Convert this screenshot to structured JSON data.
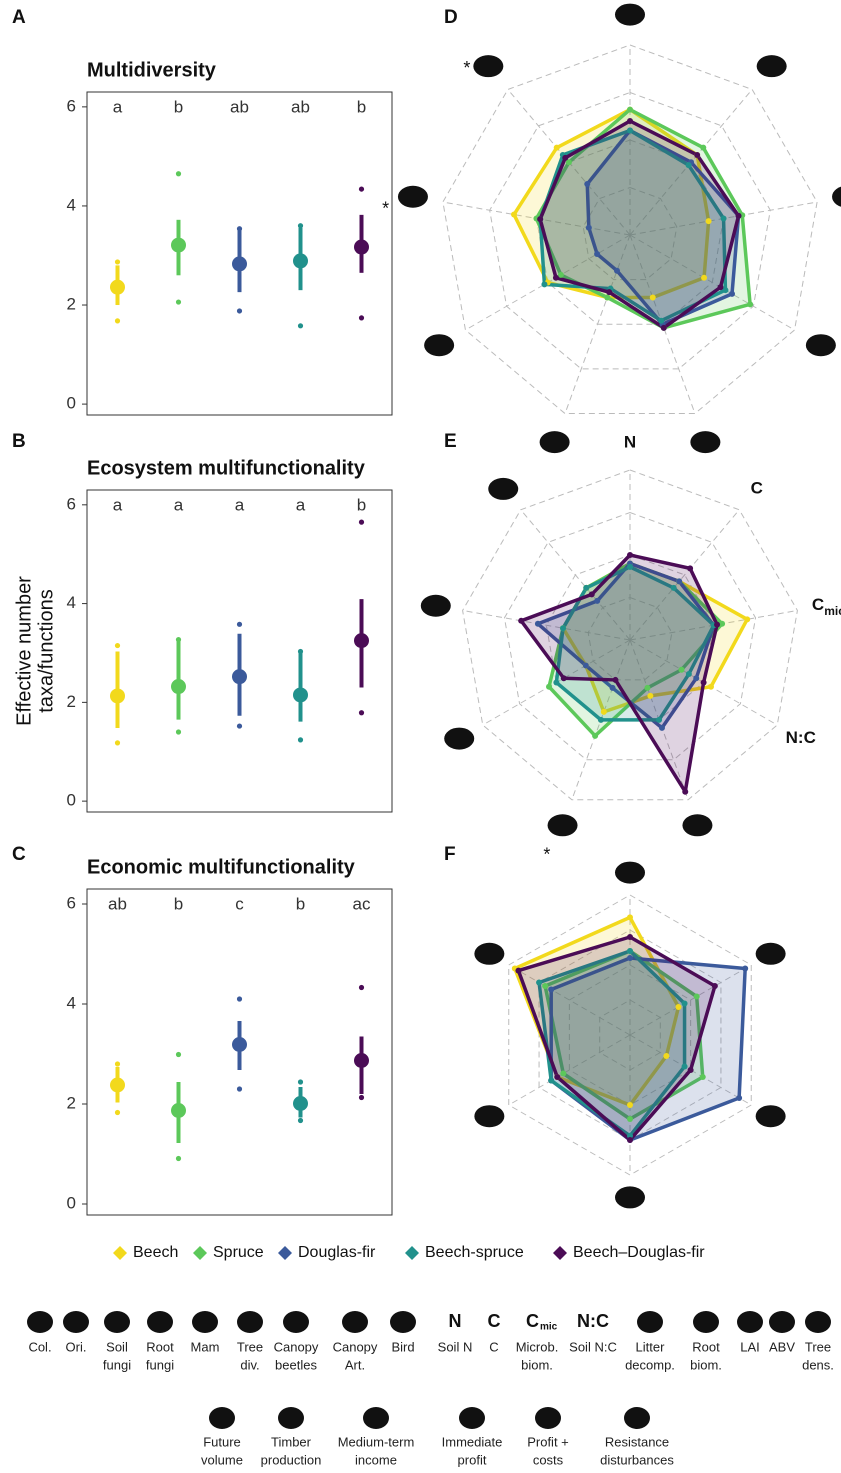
{
  "chart_data": [
    {
      "type": "dotplot",
      "panel": "A",
      "title": "Multidiversity",
      "ylim": [
        -0.22,
        6.3
      ],
      "yticks": [
        0,
        2,
        4,
        6
      ],
      "series": [
        {
          "name": "Beech",
          "color": "#f2d91c",
          "letter": "a",
          "mean": 2.36,
          "low": 2.0,
          "high": 2.8,
          "min": 1.68,
          "max": 2.87
        },
        {
          "name": "Spruce",
          "color": "#5cc85a",
          "letter": "b",
          "mean": 3.21,
          "low": 2.6,
          "high": 3.72,
          "min": 2.06,
          "max": 4.65
        },
        {
          "name": "Douglas-fir",
          "color": "#3b5a9b",
          "letter": "ab",
          "mean": 2.83,
          "low": 2.26,
          "high": 3.54,
          "min": 1.88,
          "max": 3.54
        },
        {
          "name": "Beech-spruce",
          "color": "#21918c",
          "letter": "ab",
          "mean": 2.89,
          "low": 2.3,
          "high": 3.56,
          "min": 1.58,
          "max": 3.6
        },
        {
          "name": "Beech–Douglas-fir",
          "color": "#4b0c56",
          "letter": "b",
          "mean": 3.17,
          "low": 2.65,
          "high": 3.82,
          "min": 1.74,
          "max": 4.34
        }
      ]
    },
    {
      "type": "dotplot",
      "panel": "B",
      "title": "Ecosystem multifunctionality",
      "ylabel": [
        "Effective number",
        "taxa/functions"
      ],
      "ylim": [
        -0.22,
        6.3
      ],
      "yticks": [
        0,
        2,
        4,
        6
      ],
      "series": [
        {
          "name": "Beech",
          "color": "#f2d91c",
          "letter": "a",
          "mean": 2.13,
          "low": 1.48,
          "high": 3.03,
          "min": 1.18,
          "max": 3.15
        },
        {
          "name": "Spruce",
          "color": "#5cc85a",
          "letter": "a",
          "mean": 2.32,
          "low": 1.65,
          "high": 3.27,
          "min": 1.4,
          "max": 3.27
        },
        {
          "name": "Douglas-fir",
          "color": "#3b5a9b",
          "letter": "a",
          "mean": 2.52,
          "low": 1.73,
          "high": 3.39,
          "min": 1.52,
          "max": 3.58
        },
        {
          "name": "Beech-spruce",
          "color": "#21918c",
          "letter": "a",
          "mean": 2.15,
          "low": 1.61,
          "high": 3.03,
          "min": 1.24,
          "max": 3.03
        },
        {
          "name": "Beech–Douglas-fir",
          "color": "#4b0c56",
          "letter": "b",
          "mean": 3.25,
          "low": 2.3,
          "high": 4.09,
          "min": 1.79,
          "max": 5.65
        }
      ]
    },
    {
      "type": "dotplot",
      "panel": "C",
      "title": "Economic multifunctionality",
      "ylim": [
        -0.22,
        6.3
      ],
      "yticks": [
        0,
        2,
        4,
        6
      ],
      "series": [
        {
          "name": "Beech",
          "color": "#f2d91c",
          "letter": "ab",
          "mean": 2.38,
          "low": 2.03,
          "high": 2.74,
          "min": 1.83,
          "max": 2.8
        },
        {
          "name": "Spruce",
          "color": "#5cc85a",
          "letter": "b",
          "mean": 1.87,
          "low": 1.22,
          "high": 2.44,
          "min": 0.91,
          "max": 2.99
        },
        {
          "name": "Douglas-fir",
          "color": "#3b5a9b",
          "letter": "c",
          "mean": 3.19,
          "low": 2.68,
          "high": 3.66,
          "min": 2.3,
          "max": 4.1
        },
        {
          "name": "Beech-spruce",
          "color": "#21918c",
          "letter": "b",
          "mean": 2.01,
          "low": 1.73,
          "high": 2.34,
          "min": 1.67,
          "max": 2.44
        },
        {
          "name": "Beech–Douglas-fir",
          "color": "#4b0c56",
          "letter": "ac",
          "mean": 2.87,
          "low": 2.2,
          "high": 3.35,
          "min": 2.13,
          "max": 4.33
        }
      ]
    },
    {
      "type": "radar",
      "panel": "D",
      "rlim": [
        0,
        1
      ],
      "rticks": [
        0.25,
        0.5,
        0.75,
        1
      ],
      "annotations": [
        {
          "axis": 8,
          "text": "*"
        },
        {
          "axis": 7,
          "text": "*"
        }
      ],
      "series": [
        {
          "name": "Beech",
          "color": "#f2d91c",
          "values": [
            0.66,
            0.55,
            0.42,
            0.45,
            0.35,
            0.35,
            0.5,
            0.62,
            0.6
          ]
        },
        {
          "name": "Spruce",
          "color": "#5cc85a",
          "values": [
            0.66,
            0.6,
            0.6,
            0.73,
            0.52,
            0.35,
            0.42,
            0.5,
            0.5
          ]
        },
        {
          "name": "Douglas-fir",
          "color": "#3b5a9b",
          "values": [
            0.55,
            0.5,
            0.58,
            0.62,
            0.5,
            0.2,
            0.2,
            0.22,
            0.35
          ]
        },
        {
          "name": "Beech-spruce",
          "color": "#21918c",
          "values": [
            0.55,
            0.48,
            0.5,
            0.58,
            0.48,
            0.3,
            0.52,
            0.48,
            0.55
          ]
        },
        {
          "name": "Beech–Douglas-fir",
          "color": "#4b0c56",
          "values": [
            0.6,
            0.55,
            0.58,
            0.55,
            0.52,
            0.32,
            0.45,
            0.48,
            0.53
          ]
        }
      ]
    },
    {
      "type": "radar",
      "panel": "E",
      "rlim": [
        0,
        1
      ],
      "rticks": [
        0.25,
        0.5,
        0.75,
        1
      ],
      "axis_labels": [
        {
          "axis": 0,
          "text": "N"
        },
        {
          "axis": 1,
          "text": "C"
        },
        {
          "axis": 2,
          "text": "C",
          "sub": "mic"
        },
        {
          "axis": 3,
          "text": "N:C"
        }
      ],
      "annotations": [
        {
          "axis": 5,
          "text": "*"
        }
      ],
      "series": [
        {
          "name": "Beech",
          "color": "#f2d91c",
          "values": [
            0.45,
            0.45,
            0.7,
            0.55,
            0.35,
            0.45,
            0.3,
            0.4,
            0.4
          ]
        },
        {
          "name": "Spruce",
          "color": "#5cc85a",
          "values": [
            0.45,
            0.45,
            0.55,
            0.35,
            0.3,
            0.6,
            0.55,
            0.4,
            0.4
          ]
        },
        {
          "name": "Douglas-fir",
          "color": "#3b5a9b",
          "values": [
            0.45,
            0.45,
            0.5,
            0.45,
            0.55,
            0.3,
            0.3,
            0.55,
            0.3
          ]
        },
        {
          "name": "Beech-spruce",
          "color": "#21918c",
          "values": [
            0.43,
            0.4,
            0.5,
            0.4,
            0.5,
            0.5,
            0.5,
            0.4,
            0.4
          ]
        },
        {
          "name": "Beech–Douglas-fir",
          "color": "#4b0c56",
          "values": [
            0.5,
            0.55,
            0.52,
            0.5,
            0.95,
            0.25,
            0.45,
            0.65,
            0.35
          ]
        }
      ]
    },
    {
      "type": "radar",
      "panel": "F",
      "rlim": [
        0,
        1
      ],
      "rticks": [
        0.25,
        0.5,
        0.75,
        1
      ],
      "series": [
        {
          "name": "Beech",
          "color": "#f2d91c",
          "values": [
            0.84,
            0.4,
            0.3,
            0.5,
            0.6,
            0.95
          ]
        },
        {
          "name": "Spruce",
          "color": "#5cc85a",
          "values": [
            0.6,
            0.55,
            0.6,
            0.6,
            0.55,
            0.7
          ]
        },
        {
          "name": "Douglas-fir",
          "color": "#3b5a9b",
          "values": [
            0.55,
            0.95,
            0.9,
            0.75,
            0.65,
            0.65
          ]
        },
        {
          "name": "Beech-spruce",
          "color": "#21918c",
          "values": [
            0.6,
            0.45,
            0.45,
            0.72,
            0.65,
            0.75
          ]
        },
        {
          "name": "Beech–Douglas-fir",
          "color": "#4b0c56",
          "values": [
            0.7,
            0.7,
            0.5,
            0.75,
            0.6,
            0.92
          ]
        }
      ]
    }
  ],
  "key": {
    "row1": [
      {
        "label": [
          "Col."
        ]
      },
      {
        "label": [
          "Ori."
        ]
      },
      {
        "label": [
          "Soil",
          "fungi"
        ]
      },
      {
        "label": [
          "Root",
          "fungi"
        ]
      },
      {
        "label": [
          "Mam"
        ]
      },
      {
        "label": [
          "Tree",
          "div."
        ]
      },
      {
        "label": [
          "Canopy",
          "beetles"
        ]
      },
      {
        "label": [
          "Canopy",
          "Art."
        ]
      },
      {
        "label": [
          "Bird"
        ]
      },
      {
        "symbol": "N",
        "label": [
          "Soil N"
        ]
      },
      {
        "symbol": "C",
        "label": [
          "C"
        ]
      },
      {
        "symbol": "C",
        "sub": "mic",
        "label": [
          "Microb.",
          "biom."
        ]
      },
      {
        "symbol": "N:C",
        "label": [
          "Soil N:C"
        ]
      },
      {
        "label": [
          "Litter",
          "decomp."
        ]
      },
      {
        "label": [
          "Root",
          "biom."
        ]
      },
      {
        "label": [
          "LAI"
        ]
      },
      {
        "label": [
          "ABV"
        ]
      },
      {
        "label": [
          "Tree",
          "dens."
        ]
      }
    ],
    "row2": [
      {
        "label": [
          "Future",
          "volume"
        ]
      },
      {
        "label": [
          "Timber",
          "production"
        ]
      },
      {
        "label": [
          "Medium-term",
          "income"
        ]
      },
      {
        "label": [
          "Immediate",
          "profit"
        ]
      },
      {
        "label": [
          "Profit +",
          "costs"
        ]
      },
      {
        "label": [
          "Resistance",
          "disturbances"
        ]
      }
    ]
  }
}
